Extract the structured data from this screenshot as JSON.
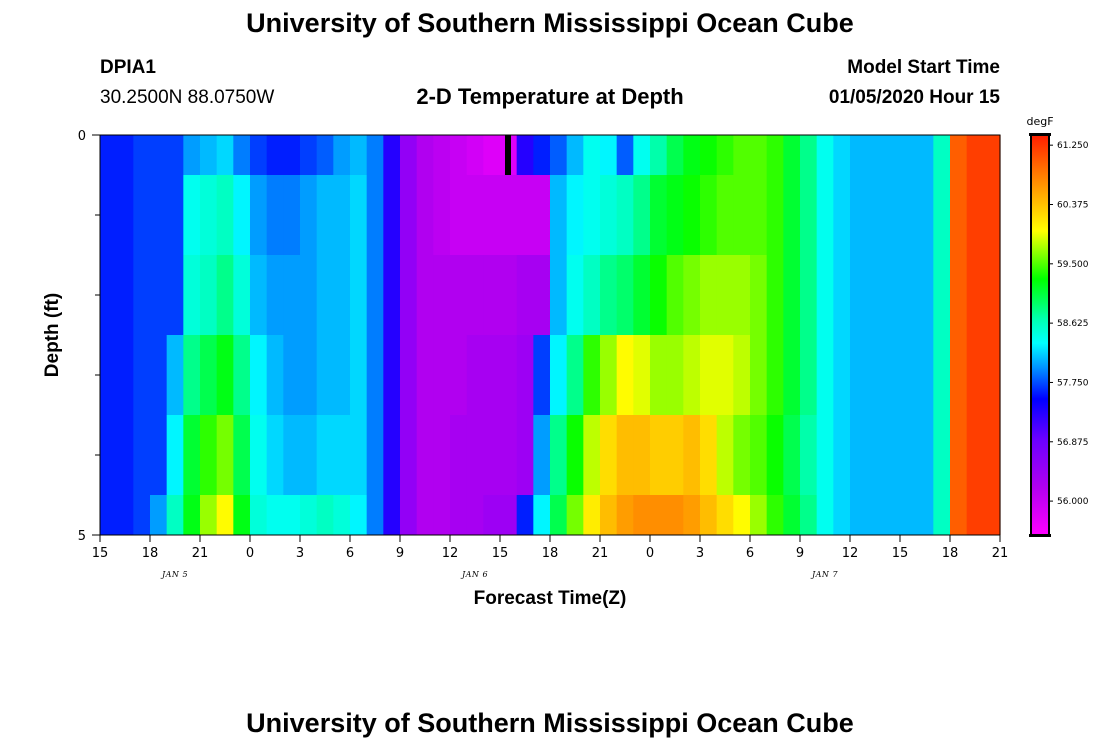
{
  "header": {
    "title": "University of Southern Mississippi Ocean Cube",
    "station_id": "DPIA1",
    "station_coords": "30.2500N 88.0750W",
    "subtitle": "2-D Temperature at Depth",
    "model_label": "Model Start Time",
    "model_start": "01/05/2020 Hour 15"
  },
  "footer": {
    "title": "University of Southern Mississippi Ocean Cube"
  },
  "chart_data": {
    "type": "heatmap",
    "title": "2-D Temperature at Depth",
    "xlabel": "Forecast Time(Z)",
    "ylabel": "Depth (ft)",
    "x_start": "01/05/2020 15Z",
    "x_step_hours": 1,
    "x_count": 54,
    "x_ticks": [
      "15",
      "18",
      "21",
      "0",
      "3",
      "6",
      "9",
      "12",
      "15",
      "18",
      "21",
      "0",
      "3",
      "6",
      "9",
      "12",
      "15",
      "18",
      "21"
    ],
    "x_day_labels": [
      {
        "text": "JAN 5",
        "tick_index": 1
      },
      {
        "text": "JAN 6",
        "tick_index": 7
      },
      {
        "text": "JAN 7",
        "tick_index": 14
      }
    ],
    "y_ticks": [
      "0",
      "5"
    ],
    "ylim": [
      0,
      5
    ],
    "depth_rows_ft": [
      0,
      0.5,
      1.5,
      2.5,
      3.5,
      4.5
    ],
    "colorbar": {
      "unit": "degF",
      "min": 55.5,
      "max": 61.4,
      "labels": [
        "61.250",
        "60.375",
        "59.500",
        "58.625",
        "57.750",
        "56.875",
        "56.000"
      ]
    },
    "values": [
      [
        57.6,
        57.6,
        57.7,
        57.7,
        57.7,
        58.0,
        58.1,
        58.2,
        57.9,
        57.7,
        57.6,
        57.6,
        57.7,
        57.8,
        58.0,
        58.1,
        57.9,
        57.3,
        56.5,
        56.2,
        56.1,
        56.0,
        55.9,
        55.8,
        55.8,
        57.3,
        57.6,
        57.8,
        58.1,
        58.4,
        58.3,
        57.8,
        58.4,
        58.7,
        59.0,
        59.2,
        59.3,
        59.4,
        59.5,
        59.5,
        59.4,
        59.1,
        58.8,
        58.4,
        58.2,
        58.1,
        58.1,
        58.1,
        58.1,
        58.1,
        58.6,
        61.0,
        61.2,
        61.2
      ],
      [
        57.6,
        57.6,
        57.7,
        57.7,
        57.7,
        58.4,
        58.5,
        58.6,
        58.3,
        58.0,
        57.9,
        57.9,
        58.0,
        58.1,
        58.1,
        58.2,
        57.9,
        57.3,
        56.5,
        56.2,
        56.1,
        56.0,
        56.0,
        56.0,
        56.0,
        56.0,
        56.0,
        58.1,
        58.3,
        58.4,
        58.5,
        58.6,
        58.8,
        59.1,
        59.2,
        59.3,
        59.4,
        59.5,
        59.5,
        59.5,
        59.4,
        59.1,
        58.8,
        58.4,
        58.2,
        58.1,
        58.1,
        58.1,
        58.1,
        58.1,
        58.6,
        61.0,
        61.2,
        61.2
      ],
      [
        57.6,
        57.6,
        57.7,
        57.7,
        57.7,
        58.5,
        58.6,
        58.8,
        58.5,
        58.1,
        58.0,
        58.0,
        58.0,
        58.1,
        58.1,
        58.2,
        57.9,
        57.3,
        56.5,
        56.2,
        56.2,
        56.2,
        56.2,
        56.2,
        56.2,
        56.3,
        56.3,
        58.1,
        58.4,
        58.6,
        58.8,
        58.9,
        59.1,
        59.3,
        59.5,
        59.6,
        59.7,
        59.7,
        59.7,
        59.6,
        59.4,
        59.1,
        58.8,
        58.4,
        58.2,
        58.1,
        58.1,
        58.1,
        58.1,
        58.1,
        58.6,
        61.0,
        61.2,
        61.2
      ],
      [
        57.6,
        57.6,
        57.7,
        57.7,
        58.1,
        58.8,
        59.0,
        59.2,
        58.8,
        58.3,
        58.1,
        58.0,
        58.0,
        58.1,
        58.1,
        58.2,
        57.9,
        57.3,
        56.5,
        56.2,
        56.2,
        56.2,
        56.3,
        56.3,
        56.3,
        56.4,
        57.7,
        58.3,
        58.8,
        59.4,
        59.7,
        60.0,
        59.9,
        59.7,
        59.7,
        59.8,
        59.9,
        59.9,
        59.8,
        59.6,
        59.4,
        59.1,
        58.8,
        58.4,
        58.2,
        58.1,
        58.1,
        58.1,
        58.1,
        58.1,
        58.6,
        61.0,
        61.2,
        61.2
      ],
      [
        57.6,
        57.6,
        57.7,
        57.7,
        58.3,
        59.1,
        59.4,
        59.6,
        59.0,
        58.4,
        58.2,
        58.1,
        58.1,
        58.2,
        58.2,
        58.2,
        57.9,
        57.3,
        56.5,
        56.2,
        56.2,
        56.3,
        56.3,
        56.3,
        56.3,
        56.4,
        58.0,
        58.8,
        59.3,
        59.8,
        60.2,
        60.4,
        60.4,
        60.3,
        60.3,
        60.4,
        60.2,
        59.8,
        59.6,
        59.5,
        59.3,
        59.0,
        58.7,
        58.4,
        58.2,
        58.1,
        58.1,
        58.1,
        58.1,
        58.1,
        58.6,
        61.0,
        61.2,
        61.2
      ],
      [
        57.6,
        57.6,
        57.7,
        58.0,
        58.6,
        59.2,
        59.7,
        60.0,
        59.2,
        58.5,
        58.4,
        58.4,
        58.5,
        58.6,
        58.5,
        58.3,
        57.9,
        57.3,
        56.5,
        56.2,
        56.2,
        56.3,
        56.3,
        56.4,
        56.4,
        57.6,
        58.3,
        59.0,
        59.6,
        60.1,
        60.4,
        60.6,
        60.7,
        60.7,
        60.7,
        60.6,
        60.4,
        60.2,
        60.0,
        59.7,
        59.4,
        59.1,
        58.8,
        58.4,
        58.2,
        58.1,
        58.1,
        58.1,
        58.1,
        58.1,
        58.6,
        61.0,
        61.2,
        61.2
      ]
    ]
  }
}
